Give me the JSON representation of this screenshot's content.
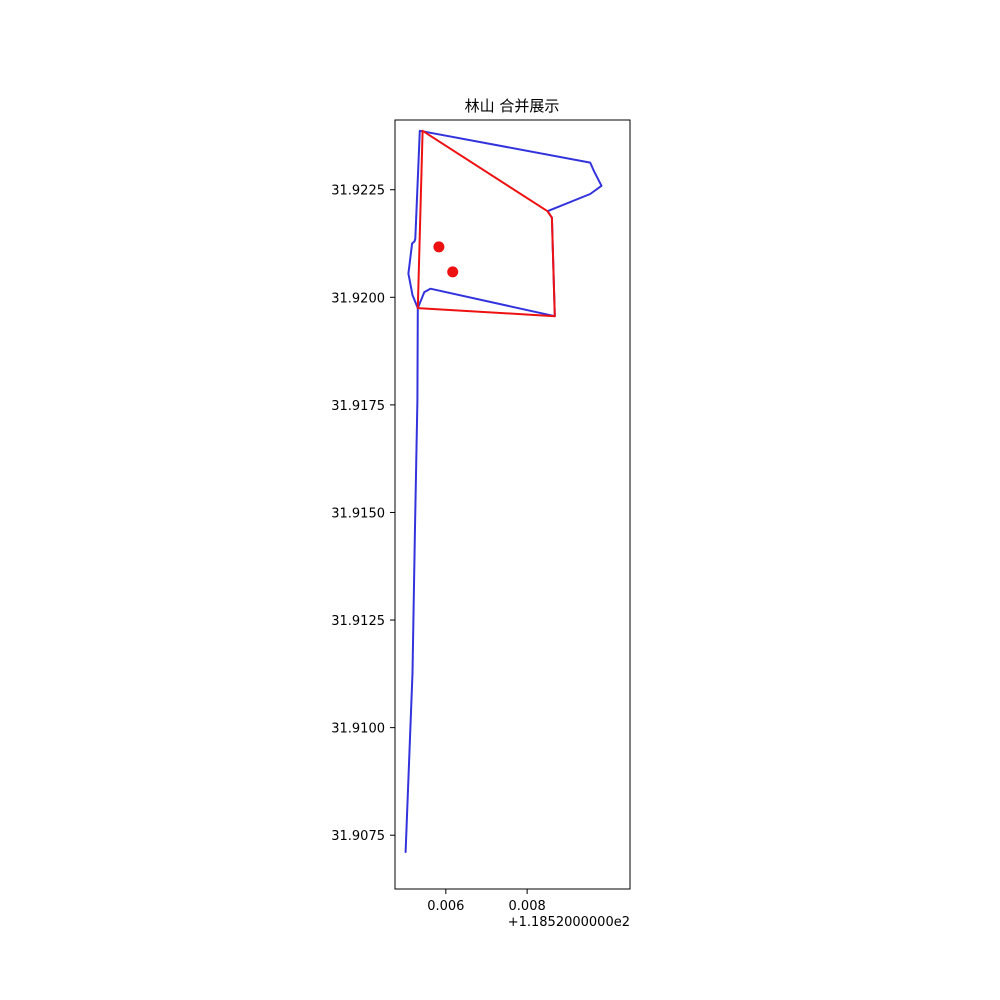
{
  "chart_data": {
    "type": "line",
    "title": "林山 合并展示",
    "xlabel": "",
    "ylabel": "",
    "xlim": [
      0.00475,
      0.01053
    ],
    "ylim": [
      31.90625,
      31.92412
    ],
    "x_offset_label": "+1.1852000000e2",
    "xticks": [
      {
        "value": 0.006,
        "label": "0.006"
      },
      {
        "value": 0.008,
        "label": "0.008"
      }
    ],
    "yticks": [
      {
        "value": 31.9075,
        "label": "31.9075"
      },
      {
        "value": 31.91,
        "label": "31.9100"
      },
      {
        "value": 31.9125,
        "label": "31.9125"
      },
      {
        "value": 31.915,
        "label": "31.9150"
      },
      {
        "value": 31.9175,
        "label": "31.9175"
      },
      {
        "value": 31.92,
        "label": "31.9200"
      },
      {
        "value": 31.9225,
        "label": "31.9225"
      }
    ],
    "grid": false,
    "series": [
      {
        "kind": "line",
        "color": "#3333dd",
        "points": [
          [
            0.00501,
            31.90711
          ],
          [
            0.00518,
            31.91127
          ],
          [
            0.00524,
            31.91453
          ],
          [
            0.0053,
            31.9176
          ],
          [
            0.00531,
            31.91975
          ],
          [
            0.00547,
            31.92012
          ],
          [
            0.00562,
            31.9202
          ],
          [
            0.00868,
            31.91956
          ],
          [
            0.00861,
            31.92185
          ],
          [
            0.0085,
            31.922
          ],
          [
            0.00955,
            31.9224
          ],
          [
            0.00983,
            31.92259
          ],
          [
            0.00965,
            31.92292
          ],
          [
            0.00955,
            31.92313
          ],
          [
            0.00536,
            31.92387
          ],
          [
            0.00525,
            31.92136
          ],
          [
            0.00523,
            31.9213
          ],
          [
            0.00517,
            31.92125
          ],
          [
            0.00508,
            31.92055
          ],
          [
            0.00518,
            31.92005
          ],
          [
            0.00531,
            31.91975
          ]
        ]
      },
      {
        "kind": "line",
        "color": "#ee1111",
        "points": [
          [
            0.00531,
            31.91975
          ],
          [
            0.00543,
            31.92387
          ],
          [
            0.0085,
            31.922
          ],
          [
            0.00861,
            31.92185
          ],
          [
            0.00868,
            31.91956
          ],
          [
            0.00531,
            31.91975
          ]
        ]
      },
      {
        "kind": "scatter",
        "color": "#ee1111",
        "points": [
          [
            0.00583,
            31.92117
          ],
          [
            0.00617,
            31.92059
          ]
        ]
      }
    ]
  }
}
